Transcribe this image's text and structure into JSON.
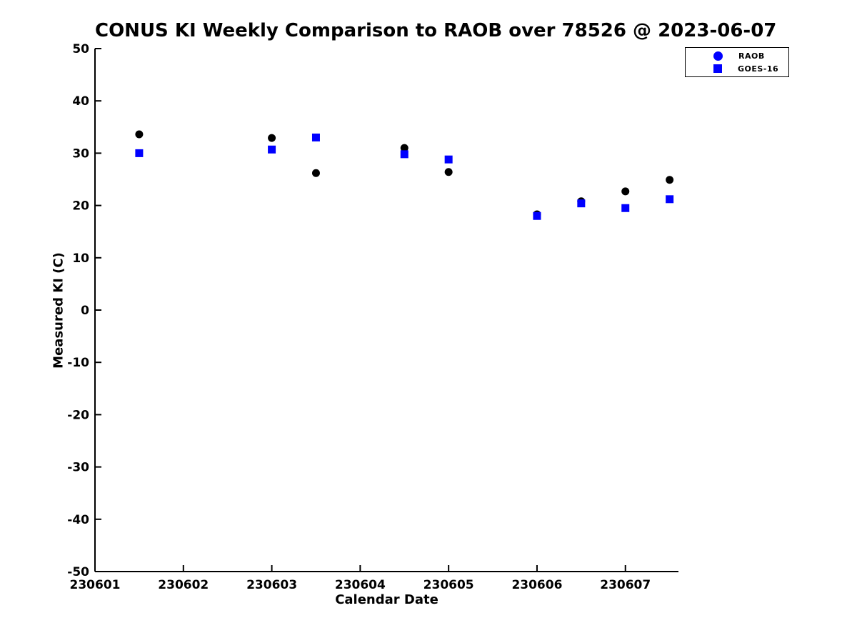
{
  "chart_data": {
    "type": "scatter",
    "title": "CONUS KI Weekly Comparison to RAOB over 78526 @ 2023-06-07",
    "xlabel": "Calendar Date",
    "ylabel": "Measured KI (C)",
    "xlim": [
      230601,
      230607.6
    ],
    "ylim": [
      -50,
      50
    ],
    "xticks": [
      230601,
      230602,
      230603,
      230604,
      230605,
      230606,
      230607
    ],
    "xtick_labels": [
      "230601",
      "230602",
      "230603",
      "230604",
      "230605",
      "230606",
      "230607"
    ],
    "yticks": [
      -50,
      -40,
      -30,
      -20,
      -10,
      0,
      10,
      20,
      30,
      40,
      50
    ],
    "ytick_labels": [
      "-50",
      "-40",
      "-30",
      "-20",
      "-10",
      "0",
      "10",
      "20",
      "30",
      "40",
      "50"
    ],
    "grid": false,
    "legend_position": "top-right-outside",
    "x": [
      230601.5,
      230603.0,
      230603.5,
      230604.5,
      230605.0,
      230606.0,
      230606.5,
      230607.0,
      230607.5
    ],
    "series": [
      {
        "name": "RAOB",
        "marker": "circle",
        "color": "#000000",
        "legend_color": "#0000ff",
        "values": [
          33.6,
          32.9,
          26.2,
          31.0,
          26.4,
          18.3,
          20.8,
          22.7,
          24.9
        ]
      },
      {
        "name": "GOES-16",
        "marker": "square",
        "color": "#0000ff",
        "legend_color": "#0000ff",
        "values": [
          30.0,
          30.7,
          33.0,
          29.8,
          28.8,
          18.0,
          20.4,
          19.5,
          21.2
        ]
      }
    ]
  },
  "styles": {
    "axis_color": "#000000",
    "text_color": "#000000",
    "background": "#ffffff"
  }
}
